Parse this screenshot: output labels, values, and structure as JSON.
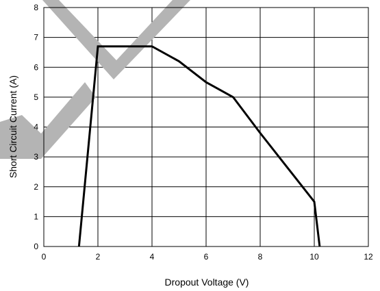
{
  "chart_data": {
    "type": "line",
    "title": "",
    "xlabel": "Dropout Voltage (V)",
    "ylabel": "Short Circuit Current (A)",
    "xlim": [
      0,
      12
    ],
    "ylim": [
      0,
      8
    ],
    "x_ticks": [
      0,
      2,
      4,
      6,
      8,
      10,
      12
    ],
    "y_ticks": [
      0,
      1,
      2,
      3,
      4,
      5,
      6,
      7,
      8
    ],
    "x_tick_labels": [
      "0",
      "2",
      "4",
      "6",
      "8",
      "10",
      "12"
    ],
    "y_tick_labels": [
      "0",
      "1",
      "2",
      "3",
      "4",
      "5",
      "6",
      "7",
      "8"
    ],
    "grid": true,
    "legend": "none",
    "series": [
      {
        "color": "#000000",
        "points": [
          {
            "x": 1.3,
            "y": 0
          },
          {
            "x": 2.0,
            "y": 6.7
          },
          {
            "x": 4.0,
            "y": 6.7
          },
          {
            "x": 5.0,
            "y": 6.2
          },
          {
            "x": 6.0,
            "y": 5.5
          },
          {
            "x": 7.0,
            "y": 5.0
          },
          {
            "x": 8.0,
            "y": 3.8
          },
          {
            "x": 9.0,
            "y": 2.65
          },
          {
            "x": 10.0,
            "y": 1.5
          },
          {
            "x": 10.2,
            "y": 0
          }
        ]
      }
    ],
    "watermark": {
      "shape": "check-marks",
      "color": "#b4b4b4"
    }
  }
}
